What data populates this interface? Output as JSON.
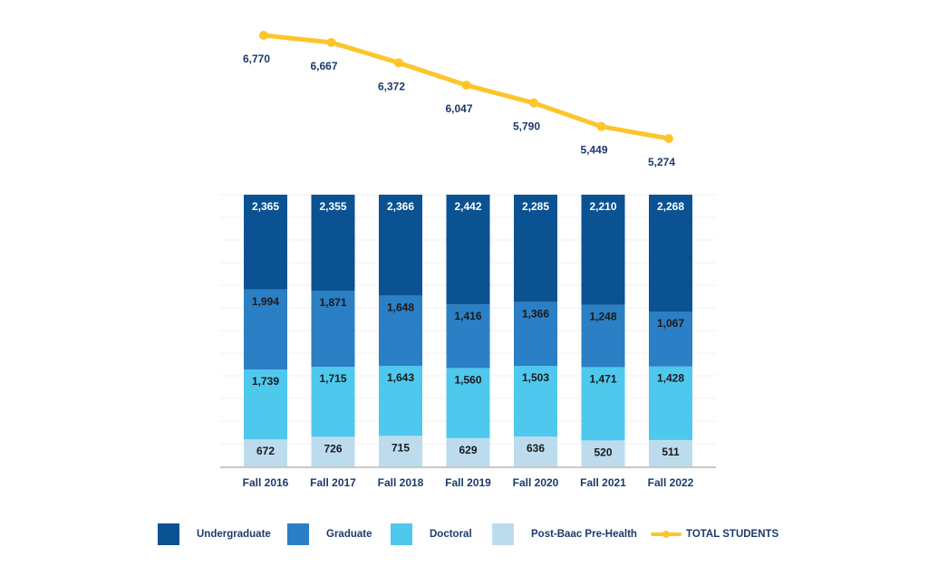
{
  "chart_data": {
    "type": "bar",
    "subtype": "stacked-percent-with-line",
    "title": "",
    "xlabel": "",
    "ylabel": "",
    "categories": [
      "Fall 2016",
      "Fall 2017",
      "Fall 2018",
      "Fall 2019",
      "Fall 2020",
      "Fall 2021",
      "Fall 2022"
    ],
    "series": [
      {
        "name": "Post-Baac Pre-Health",
        "color": "#bcdcee",
        "label_color": "#1a1a1a",
        "values": [
          672,
          726,
          715,
          629,
          636,
          520,
          511
        ]
      },
      {
        "name": "Doctoral",
        "color": "#4fc8ee",
        "label_color": "#1a1a1a",
        "values": [
          1739,
          1715,
          1643,
          1560,
          1503,
          1471,
          1428
        ]
      },
      {
        "name": "Graduate",
        "color": "#2b7fc4",
        "label_color": "#1a1a1a",
        "values": [
          1994,
          1871,
          1648,
          1416,
          1366,
          1248,
          1067
        ]
      },
      {
        "name": "Undergraduate",
        "color": "#0a5292",
        "label_color": "#ffffff",
        "values": [
          2365,
          2355,
          2366,
          2442,
          2285,
          2210,
          2268
        ]
      }
    ],
    "line_series": {
      "name": "TOTAL STUDENTS",
      "color": "#fcc52b",
      "label_color": "#1d3a6b",
      "values": [
        6770,
        6667,
        6372,
        6047,
        5790,
        5449,
        5274
      ]
    },
    "data_labels": {
      "stack": [
        [
          "672",
          "1,739",
          "1,994",
          "2,365"
        ],
        [
          "726",
          "1,715",
          "1,871",
          "2,355"
        ],
        [
          "715",
          "1,643",
          "1,648",
          "2,366"
        ],
        [
          "629",
          "1,560",
          "1,416",
          "2,442"
        ],
        [
          "636",
          "1,503",
          "1,366",
          "2,285"
        ],
        [
          "520",
          "1,471",
          "1,248",
          "2,210"
        ],
        [
          "511",
          "1,428",
          "1,067",
          "2,268"
        ]
      ],
      "line": [
        "6,770",
        "6,667",
        "6,372",
        "6,047",
        "5,790",
        "5,449",
        "5,274"
      ]
    },
    "legend": {
      "placement": "bottom",
      "entries": [
        {
          "label": "Undergraduate",
          "color": "#0a5292",
          "kind": "swatch"
        },
        {
          "label": "Graduate",
          "color": "#2b7fc4",
          "kind": "swatch"
        },
        {
          "label": "Doctoral",
          "color": "#4fc8ee",
          "kind": "swatch"
        },
        {
          "label": "Post-Baac Pre-Health",
          "color": "#bcdcee",
          "kind": "swatch"
        },
        {
          "label": "TOTAL STUDENTS",
          "color": "#fcc52b",
          "kind": "line"
        }
      ]
    },
    "ylim": [
      0,
      100
    ],
    "y_unit": "percent of total",
    "grid": true,
    "axis_color": "#c8c8c8",
    "tick_label_color": "#1d3a6b"
  }
}
